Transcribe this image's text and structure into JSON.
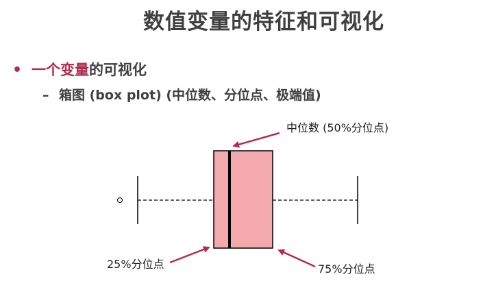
{
  "slide": {
    "title": "数值变量的特征和可视化",
    "bullet1": {
      "marker": "•",
      "accent": "一个变量",
      "rest": "的可视化"
    },
    "bullet2": {
      "marker": "–",
      "text": "箱图 (box plot) (中位数、分位点、极端值)"
    }
  },
  "boxplot": {
    "labels": {
      "median": "中位数 (50%分位点)",
      "q1": "25%分位点",
      "q3": "75%分位点"
    },
    "colors": {
      "box_fill": "#f4aaad",
      "accent": "#b22c4f",
      "line": "#000000"
    }
  }
}
